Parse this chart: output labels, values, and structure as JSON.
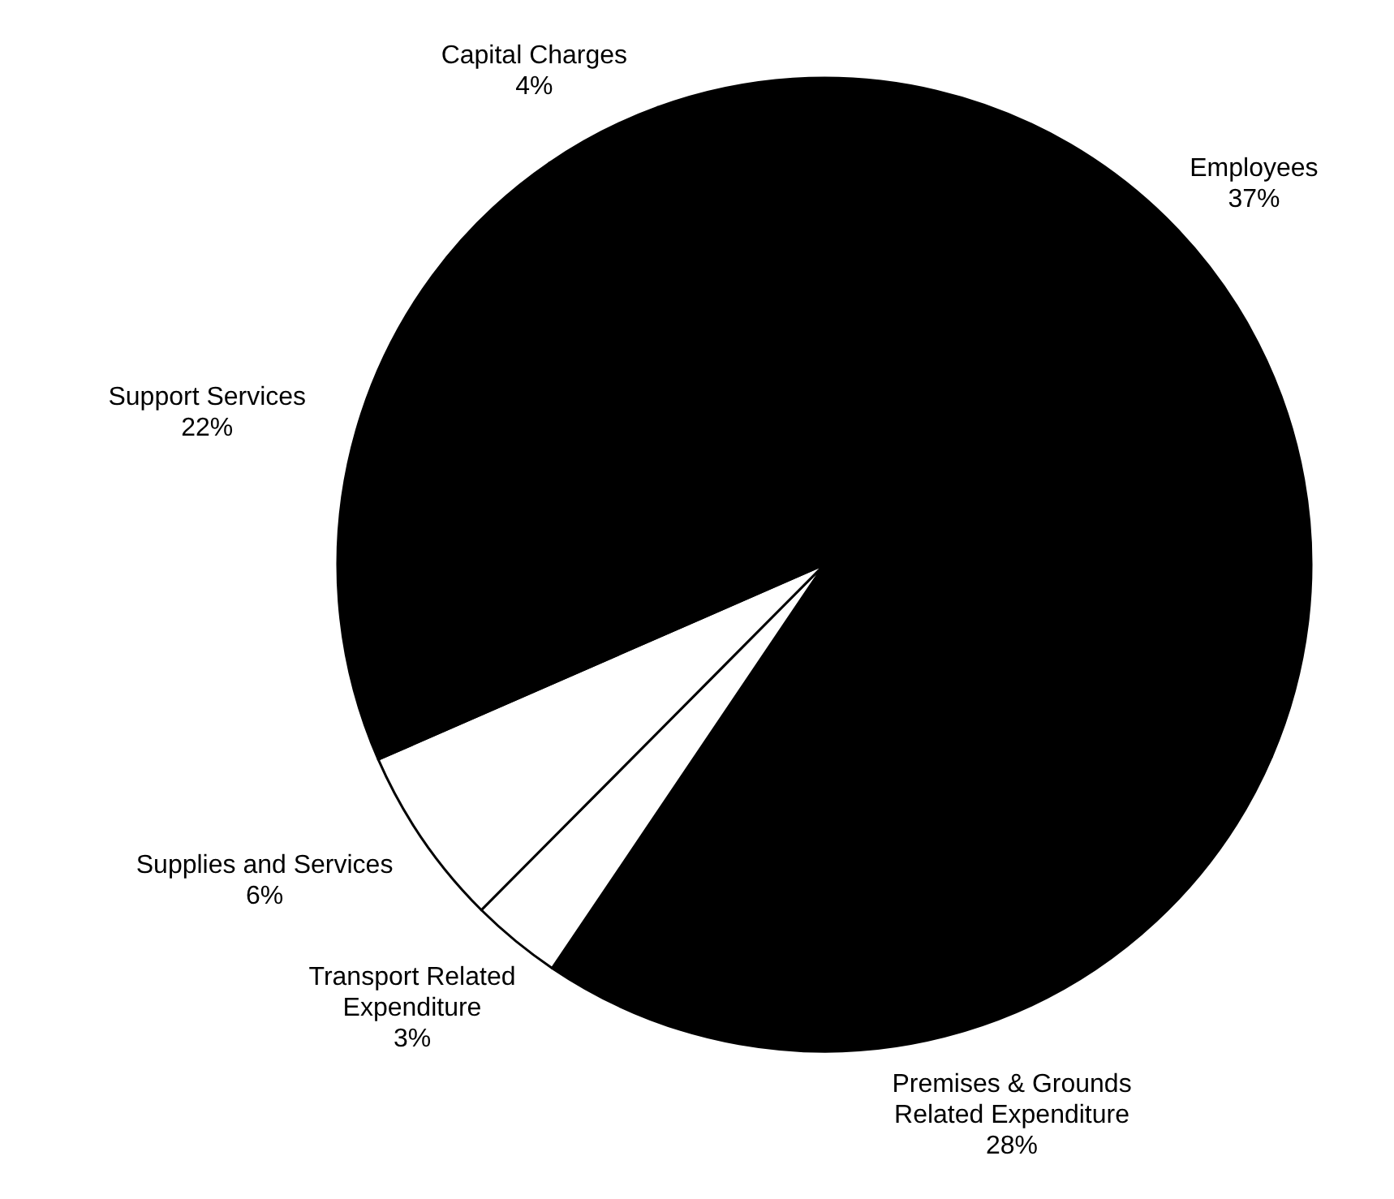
{
  "chart_data": {
    "type": "pie",
    "categories": [
      "Employees",
      "Premises & Grounds Related Expenditure",
      "Transport Related Expenditure",
      "Supplies and Services",
      "Support Services",
      "Capital Charges"
    ],
    "values": [
      37,
      28,
      3,
      6,
      22,
      4
    ],
    "colors": [
      "#000000",
      "#000000",
      "#ffffff",
      "#ffffff",
      "#000000",
      "#000000"
    ],
    "value_labels": [
      "37%",
      "28%",
      "3%",
      "6%",
      "22%",
      "4%"
    ]
  }
}
